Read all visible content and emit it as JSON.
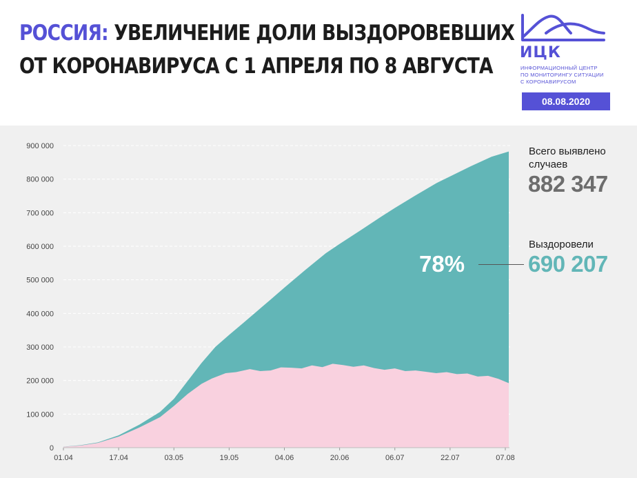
{
  "header": {
    "title_accent": "РОССИЯ:",
    "title_line1_rest": " УВЕЛИЧЕНИЕ ДОЛИ ВЫЗДОРОВЕВШИХ",
    "title_line2": "ОТ КОРОНАВИРУСА С 1 АПРЕЛЯ ПО 8 АВГУСТА"
  },
  "logo": {
    "name": "ИЦК",
    "sub_lines": [
      "ИНФОРМАЦИОННЫЙ ЦЕНТР",
      "ПО МОНИТОРИНГУ СИТУАЦИИ",
      "С КОРОНАВИРУСОМ"
    ],
    "date": "08.08.2020",
    "color": "#5551d6"
  },
  "summary": {
    "total_label": "Всего выявлено случаев",
    "total_value": "882 347",
    "recovered_label": "Выздоровели",
    "recovered_value": "690 207",
    "share": "78%"
  },
  "colors": {
    "total_area": "#62b6b7",
    "active_area": "#f9d1df",
    "recovered_text": "#62b6b7",
    "total_text": "#6d6d6d",
    "accent": "#5551d6",
    "panel_bg": "#f0f0f0"
  },
  "chart_data": {
    "type": "area",
    "ylim": [
      0,
      900000
    ],
    "yticks": [
      "0",
      "100 000",
      "200 000",
      "300 000",
      "400 000",
      "500 000",
      "600 000",
      "700 000",
      "800 000",
      "900 000"
    ],
    "ytick_values": [
      0,
      100000,
      200000,
      300000,
      400000,
      500000,
      600000,
      700000,
      800000,
      900000
    ],
    "xticks": [
      "01.04",
      "17.04",
      "03.05",
      "19.05",
      "04.06",
      "20.06",
      "06.07",
      "22.07",
      "07.08"
    ],
    "xtick_days": [
      0,
      16,
      32,
      48,
      64,
      80,
      96,
      112,
      128
    ],
    "grid": "horizontal-dashed",
    "series": [
      {
        "x_days": [
          0,
          5,
          10,
          16,
          22,
          28,
          32,
          36,
          40,
          44,
          48,
          52,
          56,
          60,
          64,
          70,
          76,
          80,
          86,
          92,
          96,
          102,
          108,
          112,
          118,
          124,
          129
        ],
        "values": [
          2777,
          7500,
          15770,
          36793,
          68622,
          106498,
          145268,
          198676,
          252245,
          299941,
          335882,
          370680,
          405843,
          441108,
          476658,
          528964,
          579160,
          606881,
          646929,
          687862,
          713936,
          751612,
          787847,
          808036,
          838461,
          866627,
          882347
        ]
      },
      {
        "x_days": [
          0,
          5,
          10,
          16,
          22,
          28,
          32,
          36,
          40,
          43,
          47,
          50,
          54,
          57,
          60,
          63,
          66,
          69,
          72,
          75,
          78,
          81,
          84,
          87,
          90,
          93,
          96,
          99,
          102,
          105,
          108,
          111,
          114,
          117,
          120,
          123,
          126,
          129
        ],
        "values": [
          2500,
          6500,
          14000,
          33000,
          60000,
          91000,
          124000,
          160000,
          190000,
          206000,
          222000,
          225000,
          234000,
          228000,
          230000,
          239000,
          238000,
          236000,
          245000,
          240000,
          250000,
          246000,
          241000,
          245000,
          237000,
          232000,
          236000,
          228000,
          230000,
          226000,
          222000,
          225000,
          219000,
          221000,
          212000,
          214000,
          205000,
          192140
        ]
      }
    ]
  }
}
